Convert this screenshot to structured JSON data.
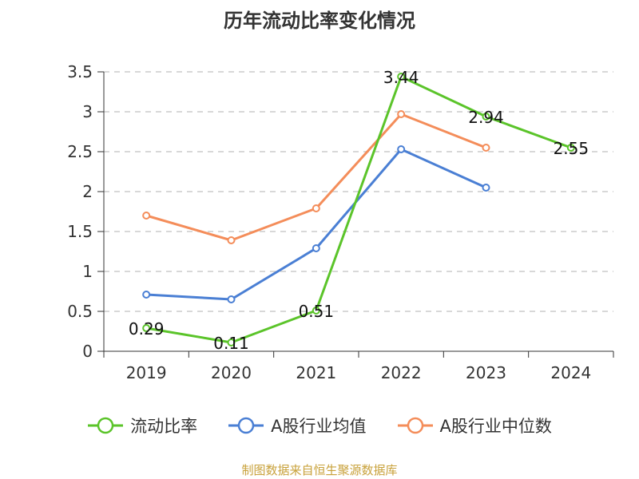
{
  "chart_data": {
    "type": "line",
    "title": "历年流动比率变化情况",
    "categories": [
      "2019",
      "2020",
      "2021",
      "2022",
      "2023",
      "2024"
    ],
    "ylim": [
      0,
      3.5
    ],
    "yticks": [
      "0",
      "0.5",
      "1",
      "1.5",
      "2",
      "2.5",
      "3",
      "3.5"
    ],
    "grid": true,
    "legend_position": "bottom",
    "series": [
      {
        "name": "流动比率",
        "color": "#5bc42a",
        "values": [
          0.29,
          0.11,
          0.51,
          3.44,
          2.94,
          2.55
        ],
        "data_labels": [
          "0.29",
          "0.11",
          "0.51",
          "3.44",
          "2.94",
          "2.55"
        ]
      },
      {
        "name": "A股行业均值",
        "color": "#4a7fd4",
        "values": [
          0.71,
          0.65,
          1.29,
          2.53,
          2.05,
          null
        ]
      },
      {
        "name": "A股行业中位数",
        "color": "#f48d5a",
        "values": [
          1.7,
          1.39,
          1.79,
          2.97,
          2.55,
          null
        ]
      }
    ]
  },
  "footer": {
    "source": "制图数据来自恒生聚源数据库"
  }
}
